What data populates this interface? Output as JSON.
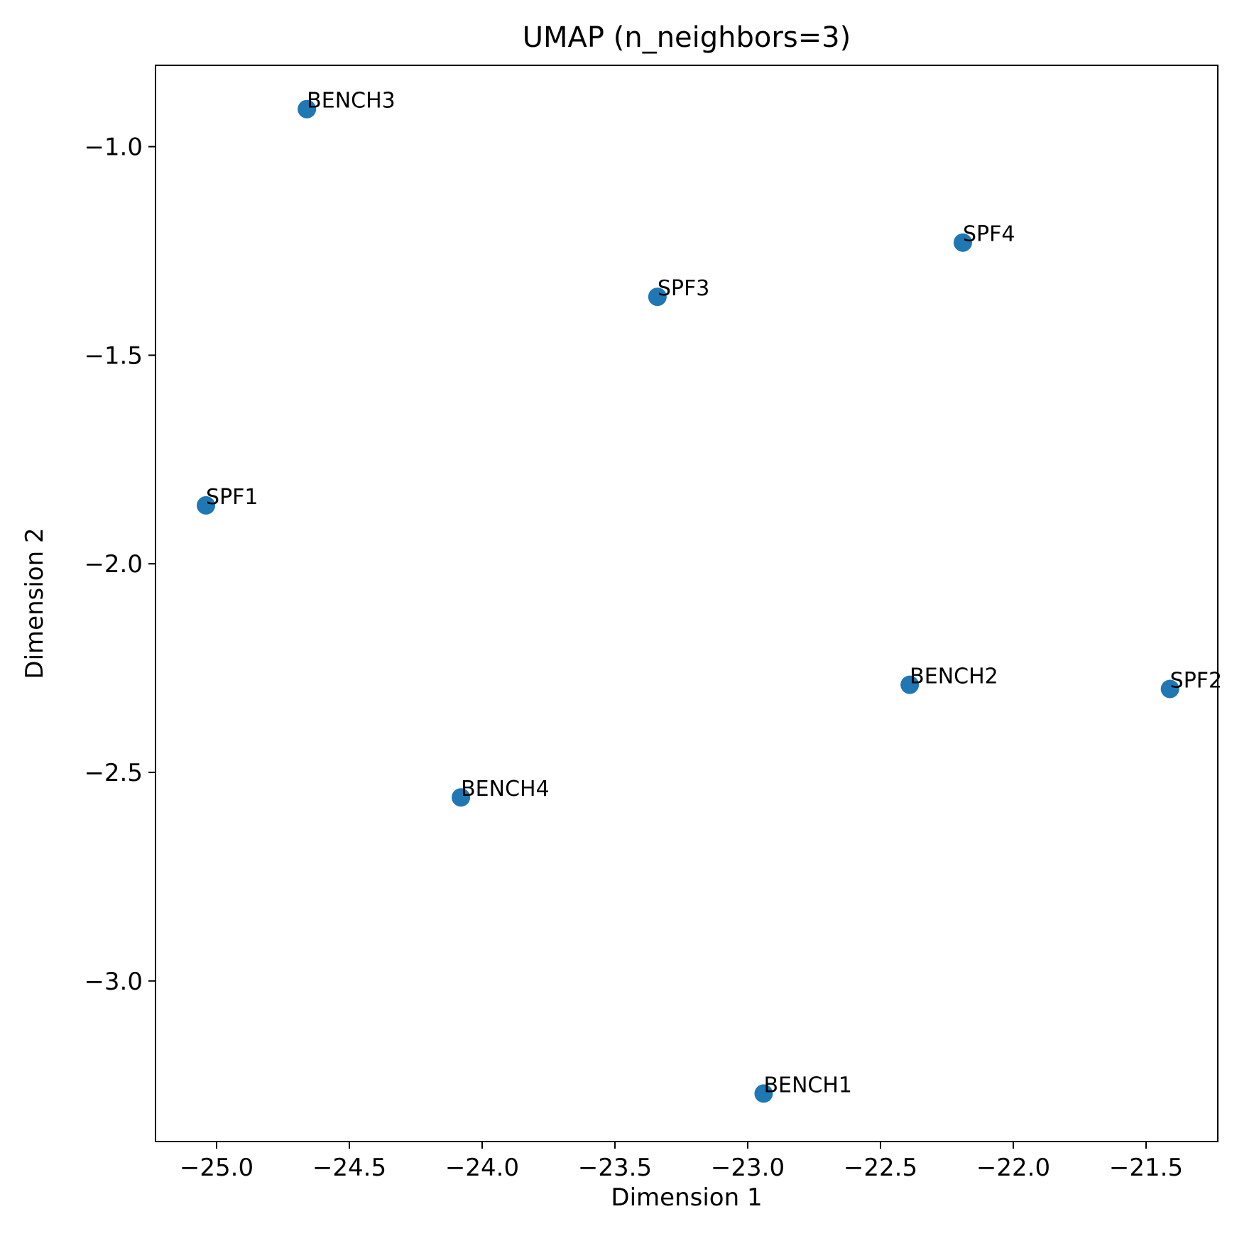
{
  "chart_data": {
    "type": "scatter",
    "title": "UMAP (n_neighbors=3)",
    "xlabel": "Dimension 1",
    "ylabel": "Dimension 2",
    "xlim": [
      -25.23,
      -21.23
    ],
    "ylim": [
      -3.385,
      -0.805
    ],
    "xticks": [
      -25.0,
      -24.5,
      -24.0,
      -23.5,
      -23.0,
      -22.5,
      -22.0,
      -21.5
    ],
    "xtick_labels": [
      "−25.0",
      "−24.5",
      "−24.0",
      "−23.5",
      "−23.0",
      "−22.5",
      "−22.0",
      "−21.5"
    ],
    "yticks": [
      -1.0,
      -1.5,
      -2.0,
      -2.5,
      -3.0
    ],
    "ytick_labels": [
      "−1.0",
      "−1.5",
      "−2.0",
      "−2.5",
      "−3.0"
    ],
    "grid": false,
    "legend": "none",
    "marker_color": "#1f77b4",
    "points": [
      {
        "label": "BENCH3",
        "x": -24.66,
        "y": -0.91
      },
      {
        "label": "SPF4",
        "x": -22.19,
        "y": -1.23
      },
      {
        "label": "SPF3",
        "x": -23.34,
        "y": -1.36
      },
      {
        "label": "SPF1",
        "x": -25.04,
        "y": -1.86
      },
      {
        "label": "BENCH2",
        "x": -22.39,
        "y": -2.29
      },
      {
        "label": "SPF2",
        "x": -21.41,
        "y": -2.3
      },
      {
        "label": "BENCH4",
        "x": -24.08,
        "y": -2.56
      },
      {
        "label": "BENCH1",
        "x": -22.94,
        "y": -3.27
      }
    ]
  }
}
